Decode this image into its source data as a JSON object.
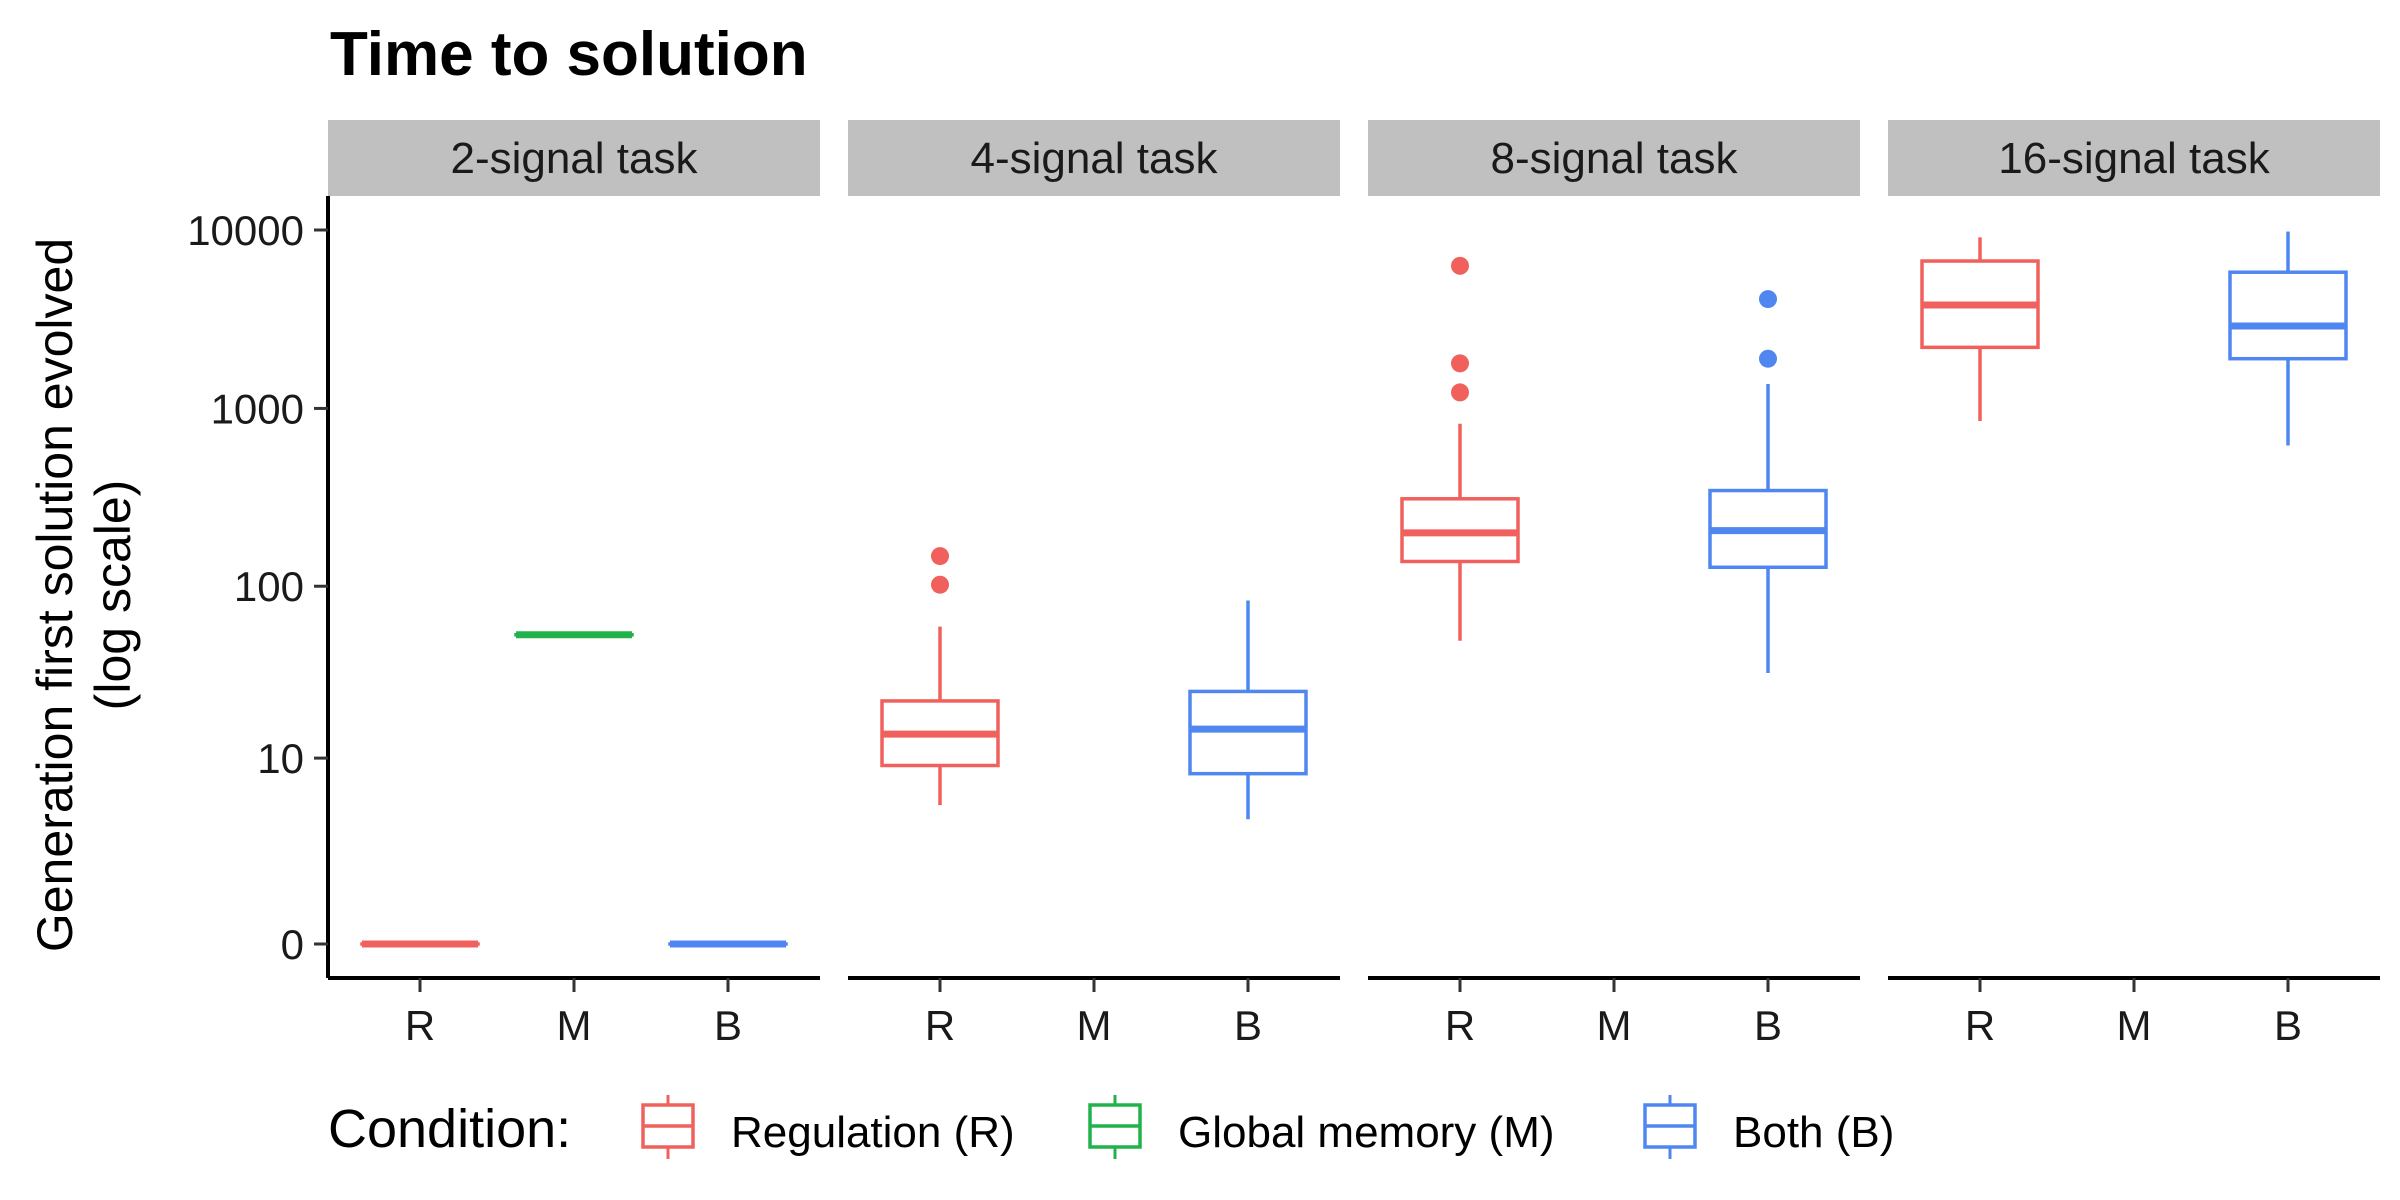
{
  "chart_data": {
    "type": "boxplot",
    "title": "Time to solution",
    "ylabel_line1": "Generation first solution evolved",
    "ylabel_line2": "(log scale)",
    "y_scale": "log10(y+1)",
    "y_ticks": [
      0,
      10,
      100,
      1000,
      10000
    ],
    "y_tick_labels": [
      "0",
      "10",
      "100",
      "1000",
      "10000"
    ],
    "categories": [
      "R",
      "M",
      "B"
    ],
    "facets": [
      "2-signal task",
      "4-signal task",
      "8-signal task",
      "16-signal task"
    ],
    "legend": {
      "title": "Condition:",
      "placement": "bottom",
      "items": [
        {
          "key": "R",
          "label": "Regulation (R)",
          "color": "#F0605D"
        },
        {
          "key": "M",
          "label": "Global memory (M)",
          "color": "#22B24C"
        },
        {
          "key": "B",
          "label": "Both (B)",
          "color": "#4F86F0"
        }
      ]
    },
    "boxes": [
      {
        "facet": 0,
        "category": "R",
        "lower_whisker": 0,
        "q1": 0,
        "median": 0,
        "q3": 0,
        "upper_whisker": 0,
        "outliers": []
      },
      {
        "facet": 0,
        "category": "M",
        "lower_whisker": 53,
        "q1": 53,
        "median": 53,
        "q3": 53,
        "upper_whisker": 53,
        "outliers": []
      },
      {
        "facet": 0,
        "category": "B",
        "lower_whisker": 0,
        "q1": 0,
        "median": 0,
        "q3": 0,
        "upper_whisker": 0,
        "outliers": []
      },
      {
        "facet": 1,
        "category": "R",
        "lower_whisker": 5,
        "q1": 9,
        "median": 14,
        "q3": 22,
        "upper_whisker": 59,
        "outliers": [
          102,
          148
        ]
      },
      {
        "facet": 1,
        "category": "B",
        "lower_whisker": 4,
        "q1": 8,
        "median": 15,
        "q3": 25,
        "upper_whisker": 83,
        "outliers": []
      },
      {
        "facet": 2,
        "category": "R",
        "lower_whisker": 49,
        "q1": 138,
        "median": 200,
        "q3": 311,
        "upper_whisker": 820,
        "outliers": [
          1230,
          1790,
          6300
        ]
      },
      {
        "facet": 2,
        "category": "B",
        "lower_whisker": 32,
        "q1": 128,
        "median": 206,
        "q3": 346,
        "upper_whisker": 1370,
        "outliers": [
          1900,
          4100
        ]
      },
      {
        "facet": 3,
        "category": "R",
        "lower_whisker": 850,
        "q1": 2200,
        "median": 3800,
        "q3": 6700,
        "upper_whisker": 9100,
        "outliers": []
      },
      {
        "facet": 3,
        "category": "B",
        "lower_whisker": 620,
        "q1": 1900,
        "median": 2900,
        "q3": 5800,
        "upper_whisker": 9800,
        "outliers": []
      }
    ]
  }
}
